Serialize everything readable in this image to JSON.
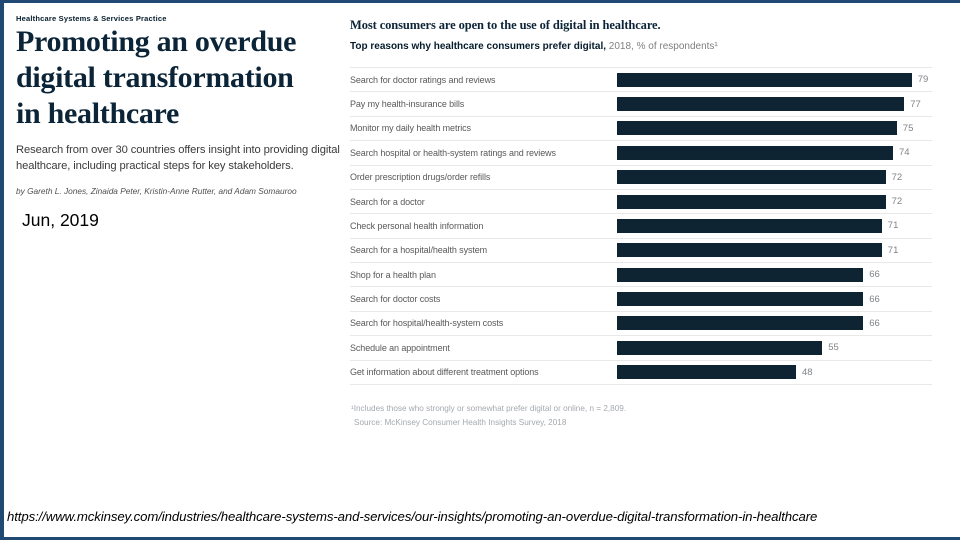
{
  "page": {
    "accent_border_color": "#204a73",
    "navy_color": "#051c2c",
    "bar_color": "#0e2433"
  },
  "left": {
    "eyebrow": "Healthcare Systems & Services Practice",
    "title_lines": [
      "Promoting an overdue",
      "digital transformation",
      "in healthcare"
    ],
    "deck": "Research from over 30 countries offers insight into providing digital healthcare, including practical steps for key stakeholders.",
    "byline": "by Gareth L. Jones, Zinaida Peter, Kristin-Anne Rutter, and Adam Somauroo",
    "date": "Jun, 2019"
  },
  "chart": {
    "title": "Most consumers are open to the use of digital in healthcare.",
    "subtitle_bold": "Top reasons why healthcare consumers prefer digital,",
    "subtitle_rest": " 2018, % of respondents¹",
    "footnote": "¹Includes those who strongly or somewhat prefer digital or online, n = 2,809.",
    "source": "Source: McKinsey Consumer Health Insights Survey, 2018"
  },
  "chart_data": {
    "type": "bar",
    "orientation": "horizontal",
    "title": "Most consumers are open to the use of digital in healthcare.",
    "subtitle": "Top reasons why healthcare consumers prefer digital, 2018, % of respondents¹",
    "categories": [
      "Search for doctor ratings and reviews",
      "Pay my health-insurance bills",
      "Monitor my daily health metrics",
      "Search hospital or health-system ratings and reviews",
      "Order prescription drugs/order refills",
      "Search for a doctor",
      "Check personal health information",
      "Search for a hospital/health system",
      "Shop for a health plan",
      "Search for doctor costs",
      "Search for hospital/health-system costs",
      "Schedule an appointment",
      "Get information about different treatment options"
    ],
    "values": [
      79,
      77,
      75,
      74,
      72,
      72,
      71,
      71,
      66,
      66,
      66,
      55,
      48
    ],
    "xlim": [
      0,
      100
    ],
    "value_labels_shown": true,
    "grid": false,
    "bar_color": "#0e2433"
  },
  "footer": {
    "url": "https://www.mckinsey.com/industries/healthcare-systems-and-services/our-insights/promoting-an-overdue-digital-transformation-in-healthcare"
  }
}
